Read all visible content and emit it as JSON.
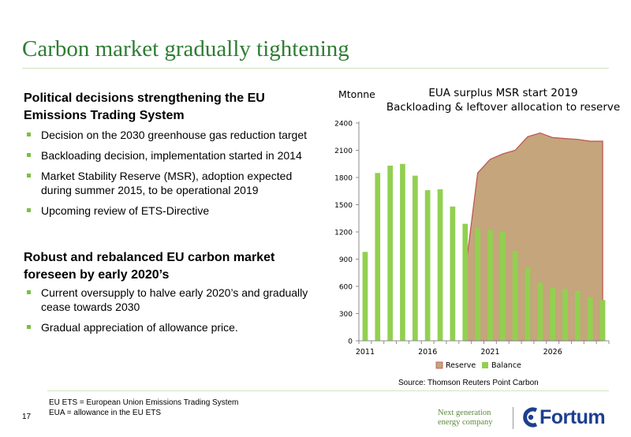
{
  "slide": {
    "title": "Carbon market gradually tightening",
    "page_number": "17"
  },
  "left": {
    "section1": {
      "heading": "Political decisions strengthening the EU Emissions Trading System",
      "bullets": [
        "Decision on the 2030 greenhouse gas reduction target",
        "Backloading decision, implementation started in 2014",
        "Market Stability Reserve (MSR), adoption expected during summer 2015, to be operational 2019",
        "Upcoming review of ETS-Directive"
      ]
    },
    "section2": {
      "heading": "Robust and rebalanced EU carbon market foreseen by early 2020’s",
      "bullets": [
        "Current oversupply to halve early 2020’s and gradually cease towards 2030",
        "Gradual appreciation of allowance price."
      ]
    }
  },
  "source": "Source: Thomson Reuters Point Carbon",
  "footnotes": [
    "EU ETS = European Union Emissions Trading System",
    "EUA = allowance in the EU ETS"
  ],
  "brand": {
    "tagline_line1": "Next generation",
    "tagline_line2": "energy company",
    "name": "Fortum"
  },
  "colors": {
    "title_green": "#2e7d33",
    "bullet_green": "#7ac142",
    "balance_bar": "#92d050",
    "reserve_fill": "#c4a57c",
    "reserve_line": "#c0504d",
    "brand_blue": "#1d3f8f"
  },
  "chart_data": {
    "type": "bar",
    "title_line1": "EUA surplus MSR start 2019",
    "title_line2": "Backloading & leftover allocation to reserve",
    "ylabel": "Mtonne",
    "ylim": [
      0,
      2400
    ],
    "yticks": [
      0,
      300,
      600,
      900,
      1200,
      1500,
      1800,
      2100,
      2400
    ],
    "xticks": [
      2011,
      2016,
      2021,
      2026
    ],
    "x": [
      2011,
      2012,
      2013,
      2014,
      2015,
      2016,
      2017,
      2018,
      2019,
      2020,
      2021,
      2022,
      2023,
      2024,
      2025,
      2026,
      2027,
      2028,
      2029,
      2030
    ],
    "series": [
      {
        "name": "Reserve",
        "kind": "area",
        "values": [
          null,
          null,
          null,
          null,
          null,
          null,
          null,
          null,
          750,
          1850,
          2000,
          2060,
          2100,
          2250,
          2290,
          2240,
          2230,
          2220,
          2200,
          2200
        ]
      },
      {
        "name": "Balance",
        "kind": "bar",
        "values": [
          980,
          1850,
          1930,
          1950,
          1820,
          1660,
          1670,
          1480,
          1290,
          1240,
          1220,
          1200,
          990,
          800,
          640,
          580,
          570,
          550,
          480,
          450
        ]
      }
    ],
    "legend": [
      "Reserve",
      "Balance"
    ],
    "legend_position": "bottom",
    "grid": false
  }
}
